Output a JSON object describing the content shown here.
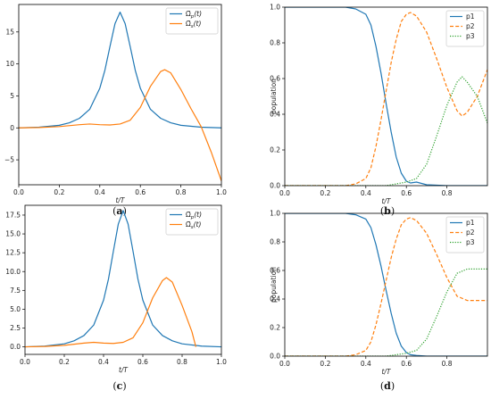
{
  "colors": {
    "blue": "#1f77b4",
    "orange": "#ff7f0e",
    "green": "#2ca02c"
  },
  "chart_data": [
    {
      "type": "line",
      "panel": "(a)",
      "xlabel": "t/T",
      "ylabel": "",
      "xlim": [
        0,
        1
      ],
      "ylim": [
        -8.9,
        19.3
      ],
      "xticks": [
        0.0,
        0.2,
        0.4,
        0.6,
        0.8,
        1.0
      ],
      "xtick_labels": [
        "0.0",
        "0.2",
        "0.4",
        "0.6",
        "0.8",
        "1.0"
      ],
      "yticks": [
        -5,
        0,
        5,
        10,
        15
      ],
      "ytick_labels": [
        "−5",
        "0",
        "5",
        "10",
        "15"
      ],
      "legend": "top-right",
      "series": [
        {
          "name": "Ω̃p(t)",
          "color": "#1f77b4",
          "style": "solid",
          "x": [
            0.0,
            0.1,
            0.2,
            0.25,
            0.3,
            0.35,
            0.4,
            0.425,
            0.45,
            0.475,
            0.5,
            0.525,
            0.55,
            0.575,
            0.6,
            0.65,
            0.7,
            0.75,
            0.8,
            0.9,
            1.0
          ],
          "y": [
            0.0,
            0.1,
            0.4,
            0.8,
            1.5,
            2.9,
            6.2,
            9.0,
            12.7,
            16.3,
            18.1,
            16.3,
            12.7,
            9.0,
            6.2,
            2.9,
            1.5,
            0.8,
            0.4,
            0.1,
            0.0
          ]
        },
        {
          "name": "Ω̃s(t)",
          "color": "#ff7f0e",
          "style": "solid",
          "x": [
            0.0,
            0.1,
            0.2,
            0.3,
            0.35,
            0.4,
            0.45,
            0.5,
            0.55,
            0.6,
            0.65,
            0.7,
            0.72,
            0.75,
            0.8,
            0.85,
            0.9,
            0.95,
            1.0
          ],
          "y": [
            0.0,
            0.05,
            0.2,
            0.5,
            0.6,
            0.5,
            0.45,
            0.6,
            1.2,
            3.2,
            6.5,
            8.8,
            9.1,
            8.6,
            6.0,
            3.0,
            0.2,
            -3.8,
            -8.3
          ]
        }
      ]
    },
    {
      "type": "line",
      "panel": "(b)",
      "xlabel": "t/T",
      "ylabel": "population",
      "xlim": [
        0,
        1
      ],
      "ylim": [
        0,
        1.0
      ],
      "xticks": [
        0.0,
        0.2,
        0.4,
        0.6,
        0.8
      ],
      "xtick_labels": [
        "0.0",
        "0.2",
        "0.4",
        "0.6",
        "0.8"
      ],
      "yticks": [
        0.0,
        0.2,
        0.4,
        0.6,
        0.8,
        1.0
      ],
      "ytick_labels": [
        "0.0",
        "0.2",
        "0.4",
        "0.6",
        "0.8",
        "1.0"
      ],
      "legend": "top-right",
      "series": [
        {
          "name": "p1",
          "color": "#1f77b4",
          "style": "solid",
          "x": [
            0.0,
            0.2,
            0.3,
            0.35,
            0.4,
            0.425,
            0.45,
            0.475,
            0.5,
            0.525,
            0.55,
            0.575,
            0.6,
            0.62,
            0.65,
            0.7,
            0.8,
            1.0
          ],
          "y": [
            1.0,
            1.0,
            1.0,
            0.99,
            0.96,
            0.9,
            0.78,
            0.63,
            0.46,
            0.3,
            0.16,
            0.07,
            0.025,
            0.015,
            0.02,
            0.005,
            0.0,
            0.0
          ]
        },
        {
          "name": "p2",
          "color": "#ff7f0e",
          "style": "dashed",
          "x": [
            0.0,
            0.3,
            0.35,
            0.4,
            0.425,
            0.45,
            0.475,
            0.5,
            0.525,
            0.55,
            0.575,
            0.6,
            0.62,
            0.65,
            0.7,
            0.75,
            0.8,
            0.85,
            0.875,
            0.9,
            0.95,
            1.0
          ],
          "y": [
            0.0,
            0.0,
            0.01,
            0.04,
            0.1,
            0.22,
            0.37,
            0.53,
            0.69,
            0.82,
            0.92,
            0.96,
            0.97,
            0.95,
            0.86,
            0.71,
            0.55,
            0.42,
            0.39,
            0.41,
            0.5,
            0.65
          ]
        },
        {
          "name": "p3",
          "color": "#2ca02c",
          "style": "dotted",
          "x": [
            0.0,
            0.5,
            0.55,
            0.6,
            0.65,
            0.7,
            0.75,
            0.8,
            0.85,
            0.875,
            0.9,
            0.95,
            1.0
          ],
          "y": [
            0.0,
            0.0,
            0.01,
            0.02,
            0.04,
            0.12,
            0.28,
            0.45,
            0.58,
            0.61,
            0.58,
            0.5,
            0.35
          ]
        }
      ]
    },
    {
      "type": "line",
      "panel": "(c)",
      "xlabel": "t/T",
      "ylabel": "",
      "xlim": [
        0,
        1
      ],
      "ylim": [
        -1.0,
        18.8
      ],
      "xticks": [
        0.0,
        0.2,
        0.4,
        0.6,
        0.8,
        1.0
      ],
      "xtick_labels": [
        "0.0",
        "0.2",
        "0.4",
        "0.6",
        "0.8",
        "1.0"
      ],
      "yticks": [
        0.0,
        2.5,
        5.0,
        7.5,
        10.0,
        12.5,
        15.0,
        17.5
      ],
      "ytick_labels": [
        "0.0",
        "2.5",
        "5.0",
        "7.5",
        "10.0",
        "12.5",
        "15.0",
        "17.5"
      ],
      "legend": "top-right",
      "series": [
        {
          "name": "Ω̃p(t)",
          "color": "#1f77b4",
          "style": "solid",
          "x": [
            0.0,
            0.1,
            0.2,
            0.25,
            0.3,
            0.35,
            0.4,
            0.425,
            0.45,
            0.475,
            0.5,
            0.525,
            0.55,
            0.575,
            0.6,
            0.65,
            0.7,
            0.75,
            0.8,
            0.9,
            1.0
          ],
          "y": [
            0.0,
            0.1,
            0.4,
            0.8,
            1.5,
            2.9,
            6.2,
            9.0,
            12.7,
            16.3,
            18.1,
            16.3,
            12.7,
            9.0,
            6.2,
            2.9,
            1.5,
            0.8,
            0.4,
            0.1,
            0.0
          ]
        },
        {
          "name": "Ω̃s(t)",
          "color": "#ff7f0e",
          "style": "solid",
          "x": [
            0.0,
            0.1,
            0.2,
            0.3,
            0.35,
            0.4,
            0.45,
            0.5,
            0.55,
            0.6,
            0.65,
            0.7,
            0.72,
            0.75,
            0.8,
            0.85,
            0.87
          ],
          "y": [
            0.0,
            0.05,
            0.2,
            0.5,
            0.6,
            0.5,
            0.45,
            0.6,
            1.2,
            3.2,
            6.5,
            8.8,
            9.2,
            8.6,
            5.5,
            2.0,
            0.0
          ]
        }
      ]
    },
    {
      "type": "line",
      "panel": "(d)",
      "xlabel": "t/T",
      "ylabel": "population",
      "xlim": [
        0,
        1
      ],
      "ylim": [
        0,
        1.0
      ],
      "xticks": [
        0.0,
        0.2,
        0.4,
        0.6,
        0.8
      ],
      "xtick_labels": [
        "0.0",
        "0.2",
        "0.4",
        "0.6",
        "0.8"
      ],
      "yticks": [
        0.0,
        0.2,
        0.4,
        0.6,
        0.8,
        1.0
      ],
      "ytick_labels": [
        "0.0",
        "0.2",
        "0.4",
        "0.6",
        "0.8",
        "1.0"
      ],
      "legend": "top-right",
      "series": [
        {
          "name": "p1",
          "color": "#1f77b4",
          "style": "solid",
          "x": [
            0.0,
            0.2,
            0.3,
            0.35,
            0.4,
            0.425,
            0.45,
            0.475,
            0.5,
            0.525,
            0.55,
            0.575,
            0.6,
            0.62,
            0.65,
            0.7,
            0.8,
            1.0
          ],
          "y": [
            1.0,
            1.0,
            1.0,
            0.99,
            0.96,
            0.9,
            0.78,
            0.63,
            0.46,
            0.3,
            0.16,
            0.07,
            0.025,
            0.01,
            0.005,
            0.0,
            0.0,
            0.0
          ]
        },
        {
          "name": "p2",
          "color": "#ff7f0e",
          "style": "dashed",
          "x": [
            0.0,
            0.3,
            0.35,
            0.4,
            0.425,
            0.45,
            0.475,
            0.5,
            0.525,
            0.55,
            0.575,
            0.6,
            0.62,
            0.65,
            0.7,
            0.75,
            0.8,
            0.85,
            0.9,
            1.0
          ],
          "y": [
            0.0,
            0.0,
            0.01,
            0.04,
            0.1,
            0.22,
            0.37,
            0.53,
            0.69,
            0.82,
            0.92,
            0.96,
            0.97,
            0.95,
            0.86,
            0.71,
            0.55,
            0.42,
            0.39,
            0.39
          ]
        },
        {
          "name": "p3",
          "color": "#2ca02c",
          "style": "dotted",
          "x": [
            0.0,
            0.5,
            0.55,
            0.6,
            0.65,
            0.7,
            0.75,
            0.8,
            0.85,
            0.9,
            1.0
          ],
          "y": [
            0.0,
            0.0,
            0.01,
            0.02,
            0.04,
            0.12,
            0.28,
            0.45,
            0.58,
            0.61,
            0.61
          ]
        }
      ]
    }
  ]
}
